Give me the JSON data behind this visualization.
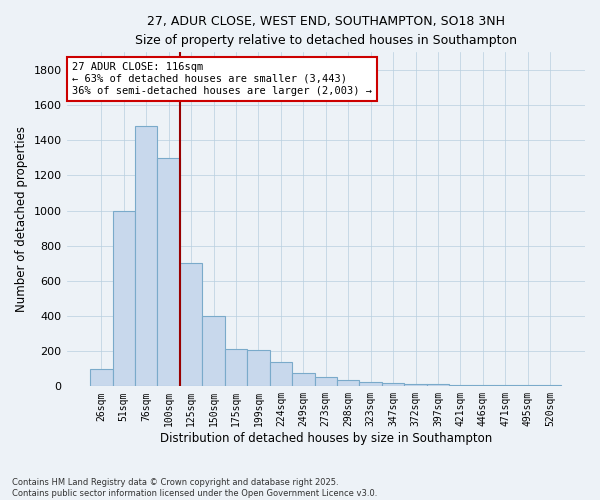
{
  "title_line1": "27, ADUR CLOSE, WEST END, SOUTHAMPTON, SO18 3NH",
  "title_line2": "Size of property relative to detached houses in Southampton",
  "categories": [
    "26sqm",
    "51sqm",
    "76sqm",
    "100sqm",
    "125sqm",
    "150sqm",
    "175sqm",
    "199sqm",
    "224sqm",
    "249sqm",
    "273sqm",
    "298sqm",
    "323sqm",
    "347sqm",
    "372sqm",
    "397sqm",
    "421sqm",
    "446sqm",
    "471sqm",
    "495sqm",
    "520sqm"
  ],
  "values": [
    100,
    1000,
    1480,
    1300,
    700,
    400,
    210,
    205,
    140,
    75,
    55,
    35,
    25,
    20,
    15,
    12,
    8,
    8,
    5,
    5,
    10
  ],
  "bar_color": "#c8d8ec",
  "bar_edge_color": "#7aaaca",
  "vline_color": "#990000",
  "vline_x": 3.5,
  "annotation_text": "27 ADUR CLOSE: 116sqm\n← 63% of detached houses are smaller (3,443)\n36% of semi-detached houses are larger (2,003) →",
  "annotation_box_color": "#ffffff",
  "annotation_box_edge": "#cc0000",
  "xlabel": "Distribution of detached houses by size in Southampton",
  "ylabel": "Number of detached properties",
  "ylim": [
    0,
    1900
  ],
  "yticks": [
    0,
    200,
    400,
    600,
    800,
    1000,
    1200,
    1400,
    1600,
    1800
  ],
  "background_color": "#edf2f7",
  "grid_color": "#b8cfe0",
  "footer_line1": "Contains HM Land Registry data © Crown copyright and database right 2025.",
  "footer_line2": "Contains public sector information licensed under the Open Government Licence v3.0."
}
